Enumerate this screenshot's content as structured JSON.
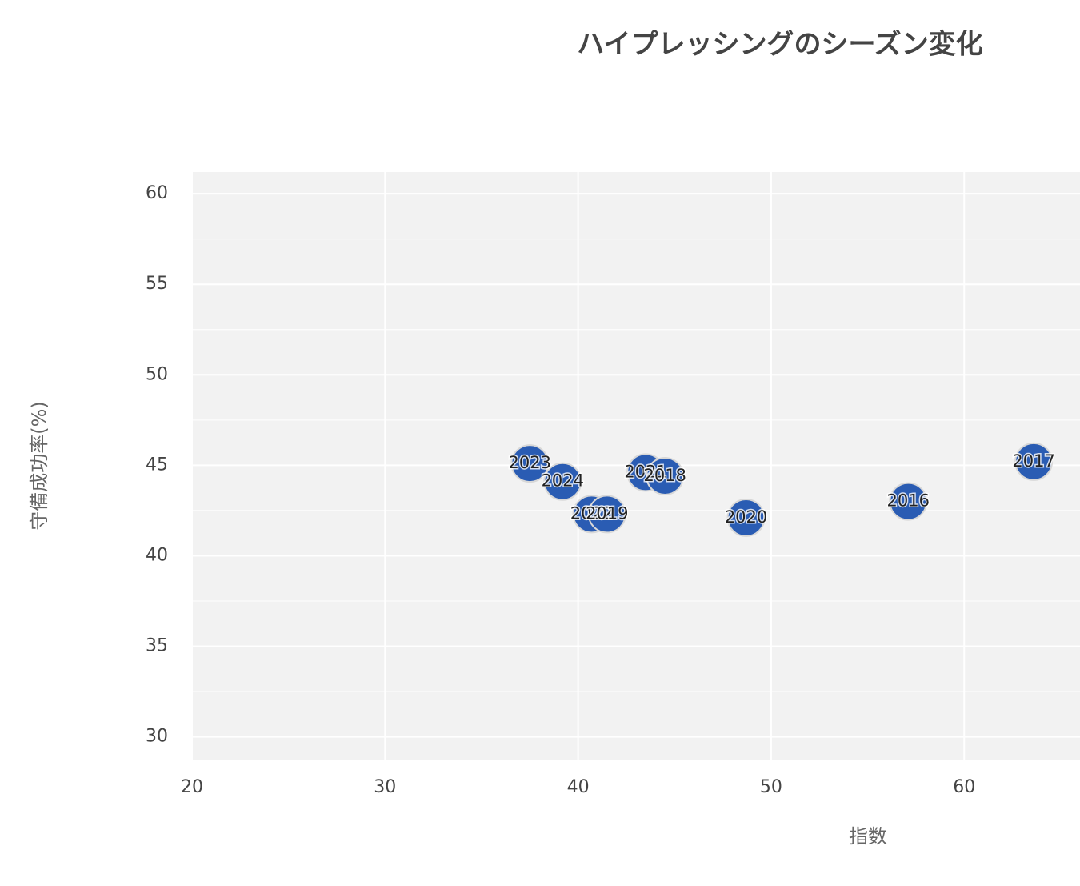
{
  "chart_data": {
    "type": "scatter",
    "title": "ハイプレッシングのシーズン変化",
    "x_label": "指数",
    "y_label": "守備成功率(%)",
    "labels": [
      "2023",
      "2024",
      "2022",
      "2019",
      "2021",
      "2018",
      "2020",
      "2016",
      "2017"
    ],
    "x": [
      37.5,
      39.2,
      40.7,
      41.5,
      43.5,
      44.5,
      48.7,
      57.1,
      63.6
    ],
    "y": [
      45.1,
      44.1,
      42.3,
      42.3,
      44.6,
      44.4,
      42.1,
      43.0,
      45.2
    ],
    "color": "#2a5cb3",
    "xlim": [
      20,
      66
    ],
    "ylim": [
      28.7,
      61.2
    ],
    "xticks": [
      20,
      30,
      40,
      50,
      60
    ],
    "yticks": [
      30,
      35,
      40,
      45,
      50,
      55,
      60
    ],
    "grid": true
  }
}
